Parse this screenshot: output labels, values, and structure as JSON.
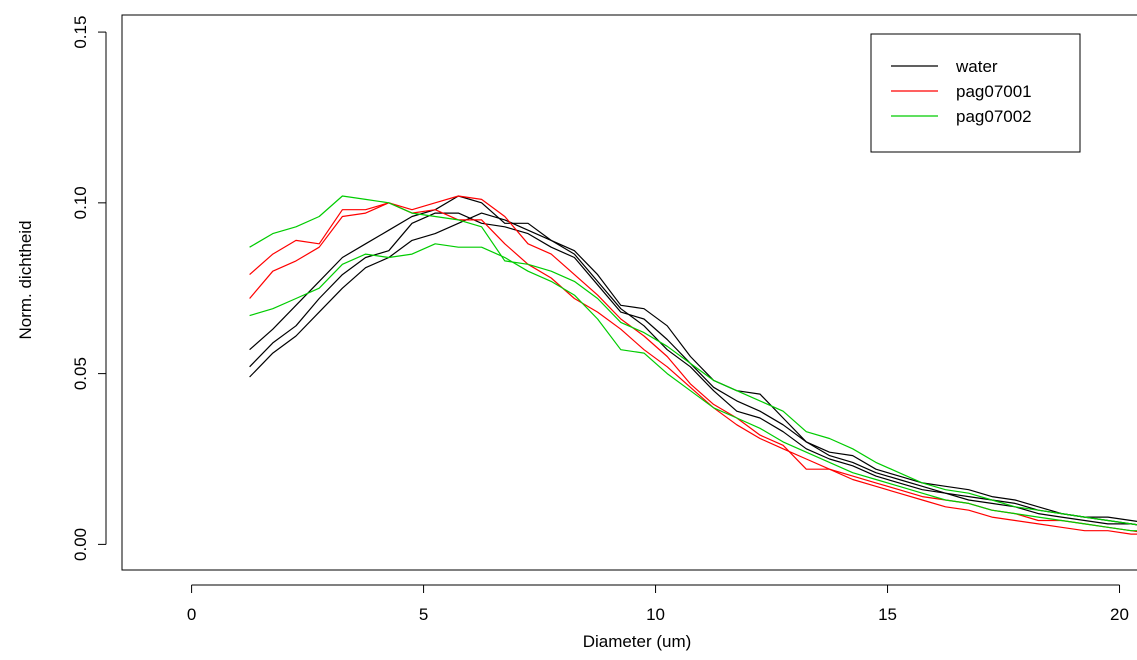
{
  "chart_data": {
    "type": "line",
    "title": "",
    "xlabel": "Diameter (um)",
    "ylabel": "Norm. dichtheid",
    "xlim": [
      -1.5,
      20.7
    ],
    "ylim": [
      -0.0075,
      0.155
    ],
    "xticks": [
      0,
      5,
      10,
      15,
      20
    ],
    "yticks": [
      0.0,
      0.05,
      0.1,
      0.15
    ],
    "xtick_labels": [
      "0",
      "5",
      "10",
      "15",
      "20"
    ],
    "ytick_labels": [
      "0.00",
      "0.05",
      "0.10",
      "0.15"
    ],
    "grid": false,
    "legend": {
      "position": "top-right",
      "entries": [
        {
          "label": "water",
          "color": "#000000"
        },
        {
          "label": "pag07001",
          "color": "#ff0000"
        },
        {
          "label": "pag07002",
          "color": "#00cc00"
        }
      ]
    },
    "x": [
      1.25,
      1.75,
      2.25,
      2.75,
      3.25,
      3.75,
      4.25,
      4.75,
      5.25,
      5.75,
      6.25,
      6.75,
      7.25,
      7.75,
      8.25,
      8.75,
      9.25,
      9.75,
      10.25,
      10.75,
      11.25,
      11.75,
      12.25,
      12.75,
      13.25,
      13.75,
      14.25,
      14.75,
      15.25,
      15.75,
      16.25,
      16.75,
      17.25,
      17.75,
      18.25,
      18.75,
      19.25,
      19.75,
      20.25,
      20.75
    ],
    "series": [
      {
        "color": "#000000",
        "values": [
          0.057,
          0.063,
          0.07,
          0.077,
          0.084,
          0.088,
          0.092,
          0.096,
          0.098,
          0.102,
          0.1,
          0.094,
          0.094,
          0.089,
          0.086,
          0.079,
          0.07,
          0.069,
          0.064,
          0.055,
          0.048,
          0.045,
          0.044,
          0.037,
          0.03,
          0.027,
          0.026,
          0.022,
          0.02,
          0.018,
          0.017,
          0.016,
          0.014,
          0.013,
          0.011,
          0.009,
          0.008,
          0.008,
          0.007,
          0.006
        ]
      },
      {
        "color": "#000000",
        "values": [
          0.052,
          0.059,
          0.064,
          0.072,
          0.079,
          0.084,
          0.086,
          0.094,
          0.097,
          0.097,
          0.094,
          0.093,
          0.091,
          0.087,
          0.084,
          0.076,
          0.068,
          0.066,
          0.06,
          0.053,
          0.046,
          0.042,
          0.039,
          0.035,
          0.03,
          0.026,
          0.024,
          0.021,
          0.019,
          0.017,
          0.015,
          0.014,
          0.013,
          0.012,
          0.01,
          0.009,
          0.008,
          0.007,
          0.006,
          0.005
        ]
      },
      {
        "color": "#000000",
        "values": [
          0.049,
          0.056,
          0.061,
          0.068,
          0.075,
          0.081,
          0.084,
          0.089,
          0.091,
          0.094,
          0.097,
          0.095,
          0.092,
          0.089,
          0.085,
          0.077,
          0.069,
          0.064,
          0.057,
          0.052,
          0.045,
          0.039,
          0.037,
          0.033,
          0.028,
          0.025,
          0.023,
          0.02,
          0.018,
          0.016,
          0.015,
          0.013,
          0.012,
          0.011,
          0.009,
          0.008,
          0.007,
          0.006,
          0.006,
          0.005
        ]
      },
      {
        "color": "#ff0000",
        "values": [
          0.079,
          0.085,
          0.089,
          0.088,
          0.098,
          0.098,
          0.1,
          0.098,
          0.1,
          0.102,
          0.101,
          0.096,
          0.088,
          0.085,
          0.079,
          0.073,
          0.066,
          0.061,
          0.055,
          0.047,
          0.041,
          0.037,
          0.032,
          0.029,
          0.022,
          0.022,
          0.02,
          0.018,
          0.016,
          0.014,
          0.013,
          0.012,
          0.01,
          0.009,
          0.007,
          0.007,
          0.006,
          0.005,
          0.004,
          0.003
        ]
      },
      {
        "color": "#ff0000",
        "values": [
          0.072,
          0.08,
          0.083,
          0.087,
          0.096,
          0.097,
          0.1,
          0.097,
          0.098,
          0.095,
          0.095,
          0.088,
          0.082,
          0.078,
          0.072,
          0.068,
          0.063,
          0.057,
          0.052,
          0.046,
          0.04,
          0.035,
          0.031,
          0.028,
          0.025,
          0.022,
          0.019,
          0.017,
          0.015,
          0.013,
          0.011,
          0.01,
          0.008,
          0.007,
          0.006,
          0.005,
          0.004,
          0.004,
          0.003,
          0.003
        ]
      },
      {
        "color": "#00cc00",
        "values": [
          0.087,
          0.091,
          0.093,
          0.096,
          0.102,
          0.101,
          0.1,
          0.097,
          0.096,
          0.095,
          0.093,
          0.083,
          0.082,
          0.08,
          0.077,
          0.072,
          0.065,
          0.062,
          0.058,
          0.053,
          0.048,
          0.045,
          0.042,
          0.039,
          0.033,
          0.031,
          0.028,
          0.024,
          0.021,
          0.018,
          0.016,
          0.015,
          0.013,
          0.011,
          0.01,
          0.009,
          0.008,
          0.007,
          0.006,
          0.005
        ]
      },
      {
        "color": "#00cc00",
        "values": [
          0.067,
          0.069,
          0.072,
          0.075,
          0.082,
          0.085,
          0.084,
          0.085,
          0.088,
          0.087,
          0.087,
          0.084,
          0.08,
          0.077,
          0.073,
          0.066,
          0.057,
          0.056,
          0.05,
          0.045,
          0.04,
          0.037,
          0.034,
          0.03,
          0.027,
          0.024,
          0.021,
          0.019,
          0.017,
          0.015,
          0.013,
          0.012,
          0.01,
          0.009,
          0.008,
          0.007,
          0.006,
          0.005,
          0.004,
          0.004
        ]
      }
    ]
  }
}
